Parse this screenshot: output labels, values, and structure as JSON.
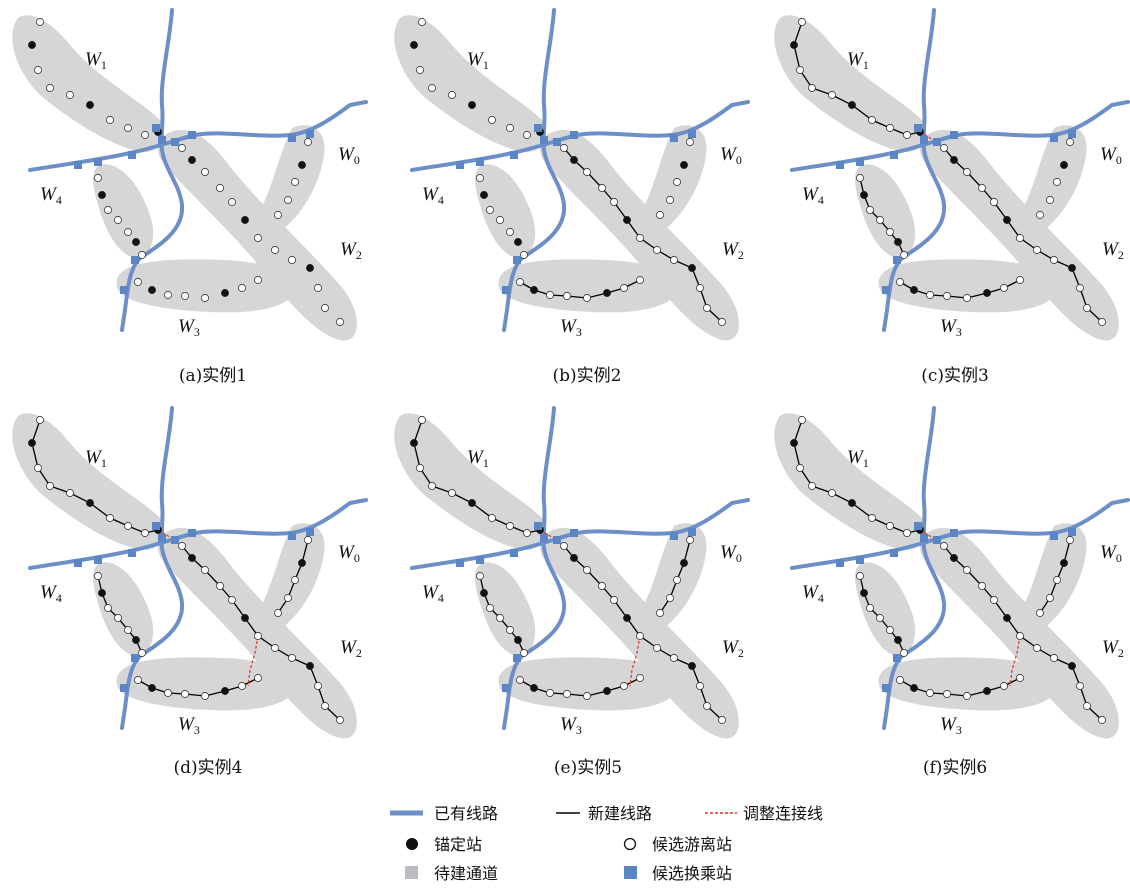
{
  "colors": {
    "existing_line": "#6b8fc6",
    "new_line": "#000000",
    "adjust_line": "#e0312b",
    "corridor": "#d6d6d6",
    "anchor": "#111111",
    "transfer": "#5b86c6"
  },
  "corridor_labels": [
    {
      "key": "w1",
      "main": "W",
      "sub": "1"
    },
    {
      "key": "w0",
      "main": "W",
      "sub": "0"
    },
    {
      "key": "w4",
      "main": "W",
      "sub": "4"
    },
    {
      "key": "w2",
      "main": "W",
      "sub": "2"
    },
    {
      "key": "w3",
      "main": "W",
      "sub": "3"
    }
  ],
  "panels": [
    {
      "id": "a",
      "caption": "(a)实例1",
      "new_segments": [],
      "adjust_segments": []
    },
    {
      "id": "b",
      "caption": "(b)实例2",
      "new_segments": [
        "w2",
        "w3"
      ],
      "adjust_segments": []
    },
    {
      "id": "c",
      "caption": "(c)实例3",
      "new_segments": [
        "w1",
        "w2",
        "w3",
        "w4"
      ],
      "adjust_segments": [
        "center"
      ]
    },
    {
      "id": "d",
      "caption": "(d)实例4",
      "new_segments": [
        "w0",
        "w1",
        "w2",
        "w3",
        "w4"
      ],
      "adjust_segments": [
        "center",
        "x"
      ]
    },
    {
      "id": "e",
      "caption": "(e)实例5",
      "new_segments": [
        "w0",
        "w1",
        "w2",
        "w3",
        "w4"
      ],
      "adjust_segments": [
        "center",
        "x"
      ]
    },
    {
      "id": "f",
      "caption": "(f)实例6",
      "new_segments": [
        "w0",
        "w1",
        "w2",
        "w3",
        "w4"
      ],
      "adjust_segments": [
        "center",
        "x"
      ]
    }
  ],
  "legend": [
    {
      "icon": "existing-line",
      "label": "已有线路"
    },
    {
      "icon": "new-line",
      "label": "新建线路"
    },
    {
      "icon": "adjust-line",
      "label": "调整连接线"
    },
    {
      "icon": "anchor-station",
      "label": "锚定站"
    },
    {
      "icon": "candidate-station",
      "label": "候选游离站"
    },
    {
      "icon": "corridor",
      "label": "待建通道"
    },
    {
      "icon": "transfer-station",
      "label": "候选换乘站"
    }
  ]
}
